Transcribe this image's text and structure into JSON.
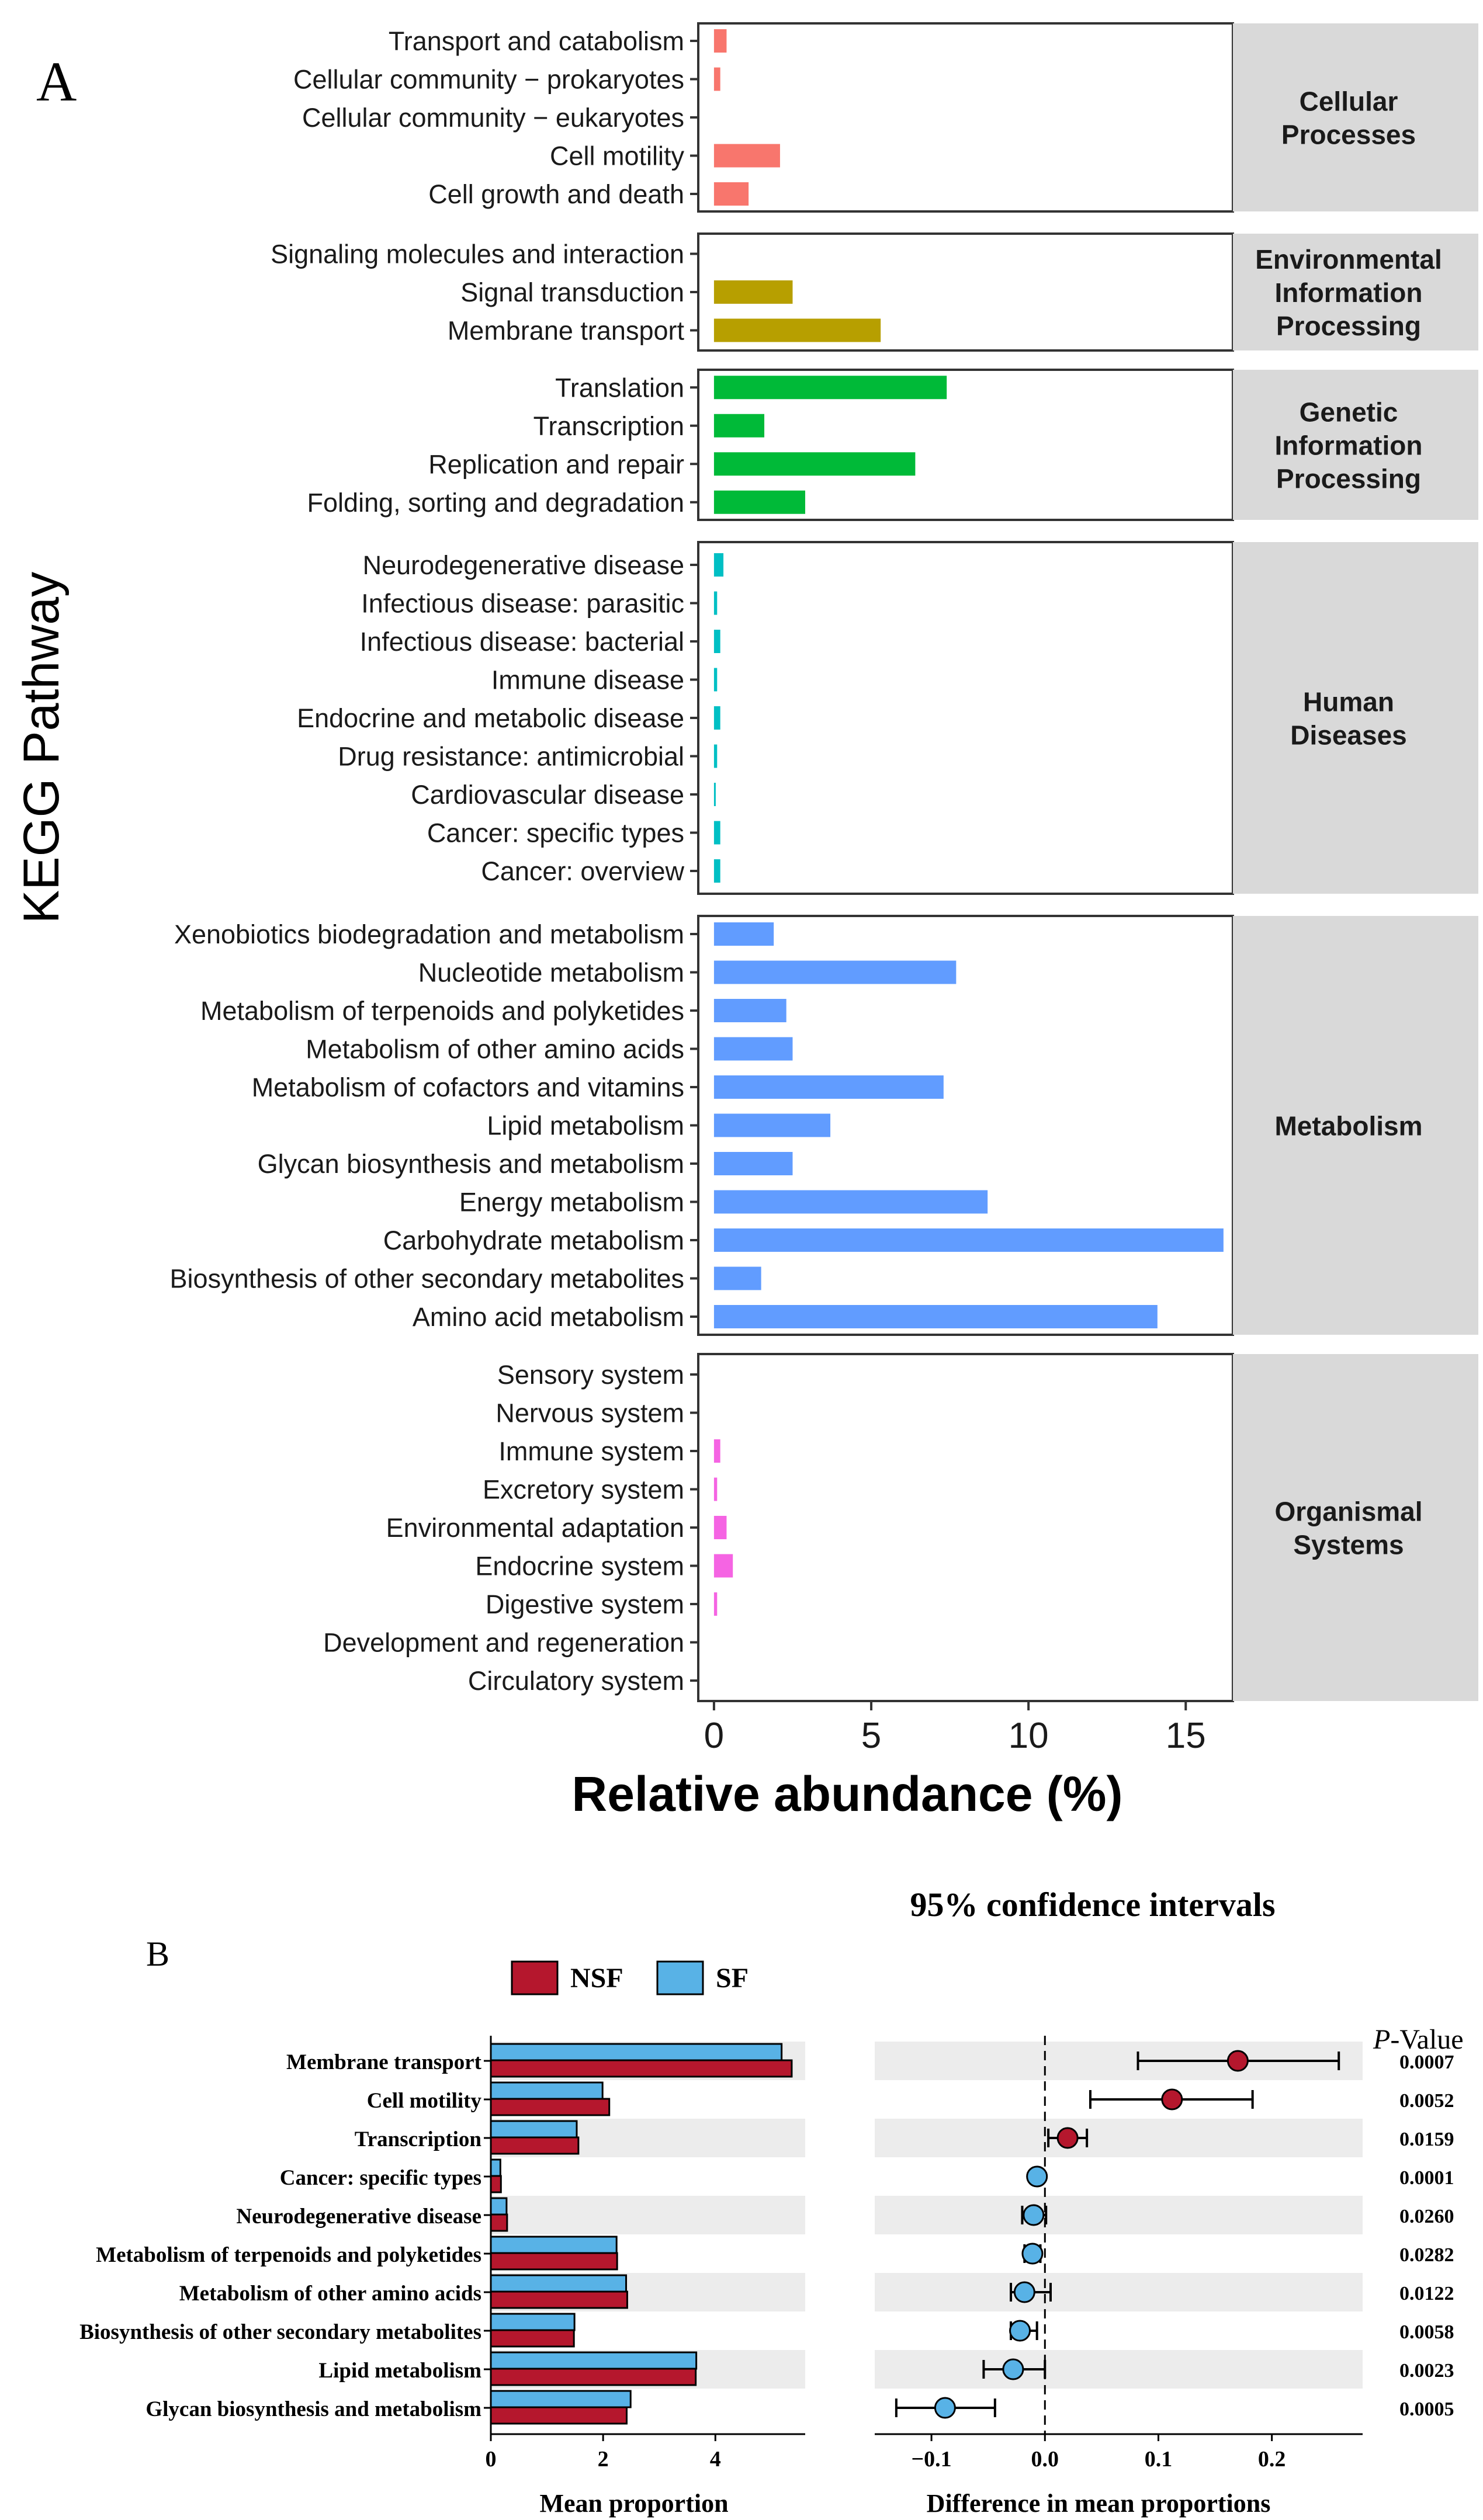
{
  "panel_a": {
    "label": "A",
    "ylabel": "KEGG Pathway",
    "xlabel": "Relative abundance (%)",
    "x_ticks": [
      "0",
      "5",
      "10",
      "15"
    ]
  },
  "panel_b": {
    "label": "B",
    "ci_title": "95% confidence intervals",
    "pvalue_header_italic": "P",
    "pvalue_header_rest": "-Value",
    "legend": [
      {
        "name": "NSF",
        "color": "#b5172d"
      },
      {
        "name": "SF",
        "color": "#58b2e6"
      }
    ],
    "left_xlabel": "Mean proportion",
    "right_xlabel": "Difference in mean proportions",
    "left_ticks": [
      "0",
      "2",
      "4"
    ],
    "right_ticks": [
      "−0.1",
      "0.0",
      "0.1",
      "0.2"
    ]
  },
  "chart_data": [
    {
      "type": "bar",
      "orientation": "horizontal",
      "xlabel": "Relative abundance (%)",
      "ylabel": "KEGG Pathway",
      "xlim": [
        -0.5,
        16.5
      ],
      "x_ticks": [
        0,
        5,
        10,
        15
      ],
      "groups": [
        {
          "name": "Cellular Processes",
          "strip_lines": [
            "Cellular",
            "Processes"
          ],
          "color": "#f8766d",
          "categories": [
            "Transport and catabolism",
            "Cellular community − prokaryotes",
            "Cellular community − eukaryotes",
            "Cell motility",
            "Cell growth and death"
          ],
          "values": [
            0.4,
            0.2,
            0.0,
            2.1,
            1.1
          ]
        },
        {
          "name": "Environmental Information Processing",
          "strip_lines": [
            "Environmental",
            "Information",
            "Processing"
          ],
          "color": "#b79f00",
          "categories": [
            "Signaling molecules and interaction",
            "Signal transduction",
            "Membrane transport"
          ],
          "values": [
            0.0,
            2.5,
            5.3
          ]
        },
        {
          "name": "Genetic Information Processing",
          "strip_lines": [
            "Genetic",
            "Information",
            "Processing"
          ],
          "color": "#00ba38",
          "categories": [
            "Translation",
            "Transcription",
            "Replication and repair",
            "Folding, sorting and degradation"
          ],
          "values": [
            7.4,
            1.6,
            6.4,
            2.9
          ]
        },
        {
          "name": "Human Diseases",
          "strip_lines": [
            "Human",
            "Diseases"
          ],
          "color": "#00bfc4",
          "categories": [
            "Neurodegenerative disease",
            "Infectious disease: parasitic",
            "Infectious disease: bacterial",
            "Immune disease",
            "Endocrine and metabolic disease",
            "Drug resistance: antimicrobial",
            "Cardiovascular disease",
            "Cancer: specific types",
            "Cancer: overview"
          ],
          "values": [
            0.3,
            0.1,
            0.2,
            0.1,
            0.2,
            0.1,
            0.05,
            0.2,
            0.2
          ]
        },
        {
          "name": "Metabolism",
          "strip_lines": [
            "Metabolism"
          ],
          "color": "#619cff",
          "categories": [
            "Xenobiotics biodegradation and metabolism",
            "Nucleotide metabolism",
            "Metabolism of terpenoids and polyketides",
            "Metabolism of other amino acids",
            "Metabolism of cofactors and vitamins",
            "Lipid metabolism",
            "Glycan biosynthesis and metabolism",
            "Energy metabolism",
            "Carbohydrate metabolism",
            "Biosynthesis of other secondary metabolites",
            "Amino acid metabolism"
          ],
          "values": [
            1.9,
            7.7,
            2.3,
            2.5,
            7.3,
            3.7,
            2.5,
            8.7,
            16.2,
            1.5,
            14.1
          ]
        },
        {
          "name": "Organismal Systems",
          "strip_lines": [
            "Organismal",
            "Systems"
          ],
          "color": "#f564e3",
          "categories": [
            "Sensory system",
            "Nervous system",
            "Immune system",
            "Excretory system",
            "Environmental adaptation",
            "Endocrine system",
            "Digestive system",
            "Development and regeneration",
            "Circulatory system"
          ],
          "values": [
            0.0,
            0.0,
            0.2,
            0.1,
            0.4,
            0.6,
            0.1,
            0.0,
            0.0
          ]
        }
      ]
    },
    {
      "type": "bar",
      "orientation": "horizontal",
      "xlabel": "Mean proportion",
      "xlim": [
        0,
        5.6
      ],
      "x_ticks": [
        0,
        2,
        4
      ],
      "categories": [
        "Membrane transport",
        "Cell motility",
        "Transcription",
        "Cancer: specific types",
        "Neurodegenerative disease",
        "Metabolism of terpenoids and polyketides",
        "Metabolism of other amino acids",
        "Biosynthesis of other secondary metabolites",
        "Lipid metabolism",
        "Glycan biosynthesis and metabolism"
      ],
      "series": [
        {
          "name": "SF",
          "color": "#58b2e6",
          "values": [
            5.18,
            1.99,
            1.53,
            0.17,
            0.28,
            2.24,
            2.41,
            1.49,
            3.66,
            2.49
          ]
        },
        {
          "name": "NSF",
          "color": "#b5172d",
          "values": [
            5.36,
            2.11,
            1.56,
            0.18,
            0.29,
            2.25,
            2.43,
            1.48,
            3.65,
            2.42
          ]
        }
      ]
    },
    {
      "type": "scatter",
      "title": "95% confidence intervals",
      "xlabel": "Difference in mean proportions",
      "xlim": [
        -0.15,
        0.28
      ],
      "x_ticks": [
        -0.1,
        0.0,
        0.1,
        0.2
      ],
      "categories": [
        "Membrane transport",
        "Cell motility",
        "Transcription",
        "Cancer: specific types",
        "Neurodegenerative disease",
        "Metabolism of terpenoids and polyketides",
        "Metabolism of other amino acids",
        "Biosynthesis of other secondary metabolites",
        "Lipid metabolism",
        "Glycan biosynthesis and metabolism"
      ],
      "estimate": [
        0.17,
        0.112,
        0.02,
        -0.007,
        -0.01,
        -0.011,
        -0.018,
        -0.022,
        -0.028,
        -0.088
      ],
      "ci_low": [
        0.082,
        0.04,
        0.003,
        -0.008,
        -0.02,
        -0.018,
        -0.03,
        -0.03,
        -0.054,
        -0.131
      ],
      "ci_high": [
        0.259,
        0.183,
        0.037,
        -0.006,
        0.001,
        -0.004,
        0.005,
        -0.007,
        0.0,
        -0.044
      ],
      "p_values": [
        "0.0007",
        "0.0052",
        "0.0159",
        "0.0001",
        "0.0260",
        "0.0282",
        "0.0122",
        "0.0058",
        "0.0023",
        "0.0005"
      ],
      "point_colors": [
        "#b5172d",
        "#b5172d",
        "#b5172d",
        "#58b2e6",
        "#58b2e6",
        "#58b2e6",
        "#58b2e6",
        "#58b2e6",
        "#58b2e6",
        "#58b2e6"
      ],
      "zero_line": "dashed"
    }
  ]
}
